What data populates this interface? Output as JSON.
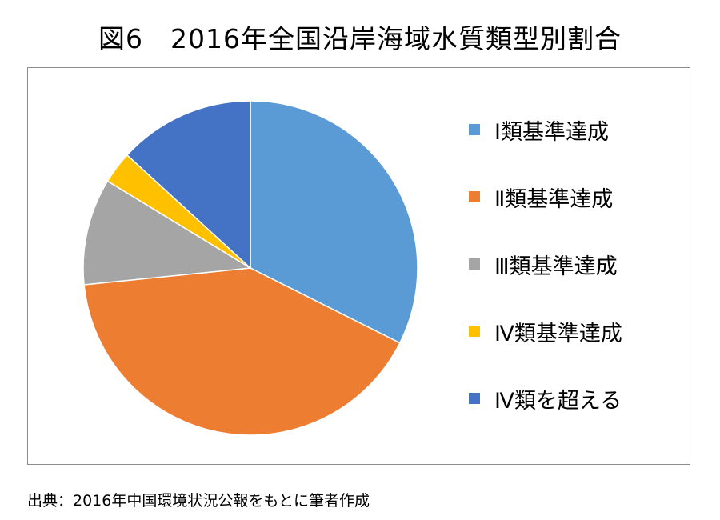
{
  "chart_data": {
    "type": "pie",
    "title": "図6　2016年全国沿岸海域水質類型別割合",
    "categories": [
      "Ⅰ類基準達成",
      "Ⅱ類基準達成",
      "Ⅲ類基準達成",
      "Ⅳ類基準達成",
      "Ⅳ類を超える"
    ],
    "values": [
      32.4,
      41.0,
      10.3,
      3.1,
      13.2
    ],
    "colors": [
      "#5b9bd5",
      "#ed7d31",
      "#a5a5a5",
      "#ffc000",
      "#4472c4"
    ],
    "start_angle_deg": 0,
    "direction": "clockwise",
    "legend_position": "right"
  },
  "source_note": "出典：2016年中国環境状況公報をもとに筆者作成"
}
